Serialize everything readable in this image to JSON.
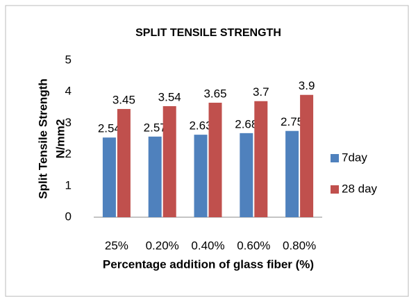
{
  "chart_data": {
    "type": "bar",
    "title": "SPLIT TENSILE STRENGTH",
    "y_label": [
      "Split Tensile Strength",
      "N/mm2"
    ],
    "x_label": "Percentage addition of glass fiber (%)",
    "categories": [
      "25%",
      "0.20%",
      "0.40%",
      "0.60%",
      "0.80%"
    ],
    "series": [
      {
        "name": "7day",
        "color": "#4f81bd",
        "values": [
          2.54,
          2.57,
          2.63,
          2.68,
          2.75
        ]
      },
      {
        "name": "28 day",
        "color": "#c0504d",
        "values": [
          3.45,
          3.54,
          3.65,
          3.7,
          3.9
        ]
      }
    ],
    "ylim": [
      0,
      5
    ],
    "yticks": [
      0,
      1,
      2,
      3,
      4,
      5
    ],
    "grid": false,
    "legend": "right"
  }
}
